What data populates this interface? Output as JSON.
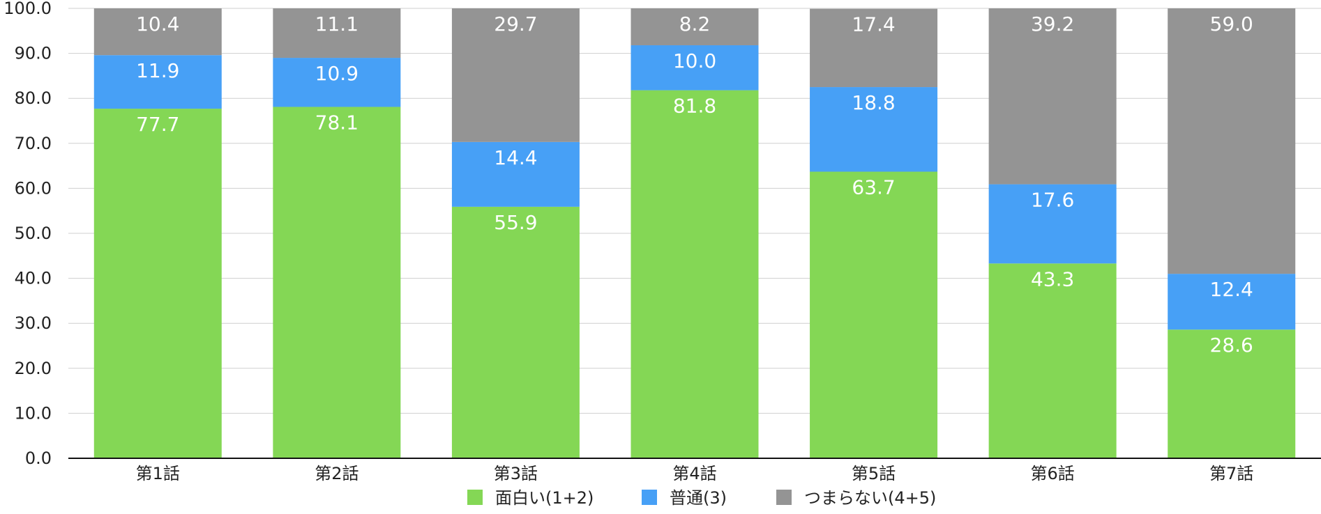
{
  "chart_data": {
    "type": "bar",
    "stacked": true,
    "categories": [
      "第1話",
      "第2話",
      "第3話",
      "第4話",
      "第5話",
      "第6話",
      "第7話"
    ],
    "series": [
      {
        "name": "面白い(1+2)",
        "color": "#84d755",
        "values": [
          77.7,
          78.1,
          55.9,
          81.8,
          63.7,
          43.3,
          28.6
        ]
      },
      {
        "name": "普通(3)",
        "color": "#47a0f6",
        "values": [
          11.9,
          10.9,
          14.4,
          10.0,
          18.8,
          17.6,
          12.4
        ]
      },
      {
        "name": "つまらない(4+5)",
        "color": "#949494",
        "values": [
          10.4,
          11.1,
          29.7,
          8.2,
          17.4,
          39.2,
          59.0
        ]
      }
    ],
    "ylim": [
      0,
      100
    ],
    "yticks": [
      "0.0",
      "10.0",
      "20.0",
      "30.0",
      "40.0",
      "50.0",
      "60.0",
      "70.0",
      "80.0",
      "90.0",
      "100.0"
    ],
    "grid": true,
    "legend_position": "bottom"
  }
}
